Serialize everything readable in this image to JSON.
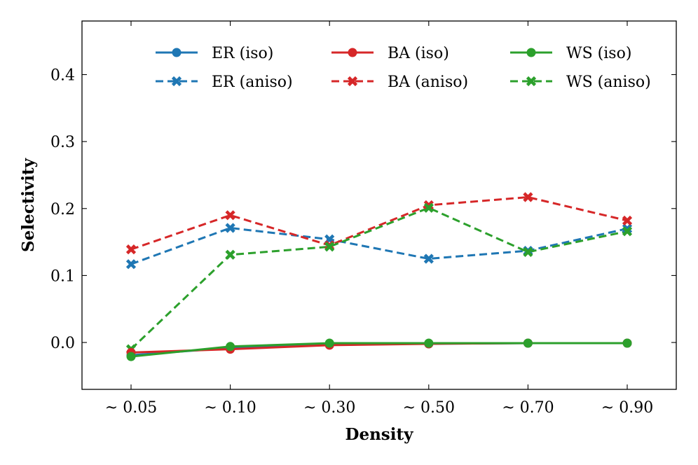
{
  "chart_data": {
    "type": "line",
    "title": "",
    "xlabel": "Density",
    "ylabel": "Selectivity",
    "categories": [
      "~ 0.05",
      "~ 0.10",
      "~ 0.30",
      "~ 0.50",
      "~ 0.70",
      "~ 0.90"
    ],
    "ylim": [
      -0.07,
      0.48
    ],
    "yticks": [
      0.0,
      0.1,
      0.2,
      0.3,
      0.4
    ],
    "ytick_labels": [
      "0.0",
      "0.1",
      "0.2",
      "0.3",
      "0.4"
    ],
    "grid": false,
    "legend_position": "top",
    "series": [
      {
        "name": "ER (iso)",
        "color": "#1f77b4",
        "style": "solid",
        "marker": "circle",
        "values": [
          -0.019,
          -0.008,
          -0.002,
          -0.002,
          -0.001,
          -0.001
        ]
      },
      {
        "name": "BA (iso)",
        "color": "#d62728",
        "style": "solid",
        "marker": "circle",
        "values": [
          -0.015,
          -0.01,
          -0.004,
          -0.002,
          -0.001,
          -0.001
        ]
      },
      {
        "name": "WS (iso)",
        "color": "#2ca02c",
        "style": "solid",
        "marker": "circle",
        "values": [
          -0.021,
          -0.006,
          -0.001,
          -0.001,
          -0.001,
          -0.001
        ]
      },
      {
        "name": "ER (aniso)",
        "color": "#1f77b4",
        "style": "dashed",
        "marker": "x",
        "values": [
          0.117,
          0.171,
          0.154,
          0.125,
          0.137,
          0.17
        ]
      },
      {
        "name": "BA (aniso)",
        "color": "#d62728",
        "style": "dashed",
        "marker": "x",
        "values": [
          0.139,
          0.19,
          0.145,
          0.205,
          0.217,
          0.182
        ]
      },
      {
        "name": "WS (aniso)",
        "color": "#2ca02c",
        "style": "dashed",
        "marker": "x",
        "values": [
          -0.01,
          0.131,
          0.143,
          0.201,
          0.135,
          0.166
        ]
      }
    ],
    "legend_order": [
      [
        "ER (iso)",
        "BA (iso)",
        "WS (iso)"
      ],
      [
        "ER (aniso)",
        "BA (aniso)",
        "WS (aniso)"
      ]
    ]
  }
}
